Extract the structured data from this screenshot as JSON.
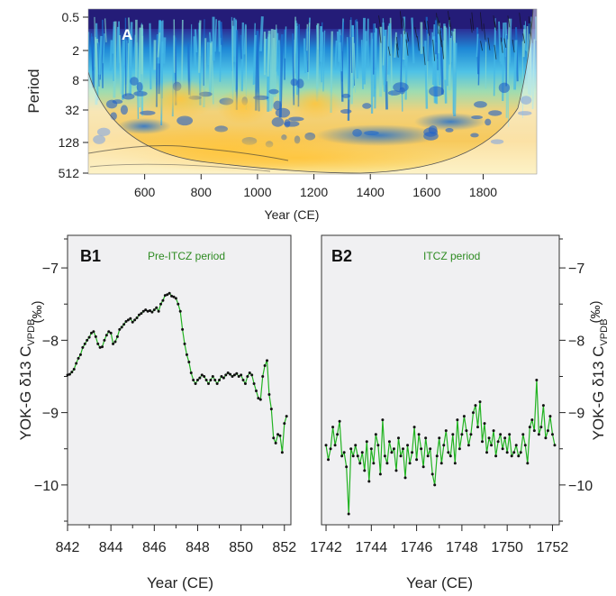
{
  "panel_a": {
    "label": "A",
    "ylabel": "Period",
    "xlabel": "Year (CE)",
    "yticks": [
      "0.5",
      "2",
      "8",
      "32",
      "128",
      "512"
    ],
    "xticks": [
      "600",
      "800",
      "1000",
      "1200",
      "1400",
      "1600",
      "1800"
    ],
    "colors": {
      "low": "#25207a",
      "mid": "#1e88d6",
      "mid2": "#4fc2e6",
      "high": "#f7cf60",
      "peak": "#ffe38a"
    }
  },
  "shared": {
    "ylabel_main": "YOK-G δ13 C",
    "ylabel_sub": "VPDB",
    "ylabel_unit": "(‰)",
    "line_color": "#22b322",
    "label_color": "#2e8b22",
    "yticks": [
      "−7",
      "−8",
      "−9",
      "−10"
    ]
  },
  "chart_data": [
    {
      "type": "line",
      "panel": "B1",
      "title": "Pre-ITCZ period",
      "xlabel": "Year (CE)",
      "ylabel": "YOK-G δ13 C VPDB (‰)",
      "xlim": [
        842,
        852.3
      ],
      "ylim": [
        -10.55,
        -6.55
      ],
      "xticks": [
        842,
        844,
        846,
        848,
        850,
        852
      ],
      "yticks": [
        -7,
        -8,
        -9,
        -10
      ],
      "x": [
        842.0,
        842.1,
        842.2,
        842.3,
        842.4,
        842.5,
        842.6,
        842.7,
        842.8,
        842.9,
        843.0,
        843.1,
        843.2,
        843.3,
        843.4,
        843.5,
        843.6,
        843.7,
        843.8,
        843.9,
        844.0,
        844.1,
        844.2,
        844.3,
        844.4,
        844.5,
        844.6,
        844.7,
        844.8,
        844.9,
        845.0,
        845.1,
        845.2,
        845.3,
        845.4,
        845.5,
        845.6,
        845.7,
        845.8,
        845.9,
        846.0,
        846.1,
        846.2,
        846.3,
        846.4,
        846.5,
        846.6,
        846.7,
        846.8,
        846.9,
        847.0,
        847.1,
        847.2,
        847.3,
        847.4,
        847.5,
        847.6,
        847.7,
        847.8,
        847.9,
        848.0,
        848.1,
        848.2,
        848.3,
        848.4,
        848.5,
        848.6,
        848.7,
        848.8,
        848.9,
        849.0,
        849.1,
        849.2,
        849.3,
        849.4,
        849.5,
        849.6,
        849.7,
        849.8,
        849.9,
        850.0,
        850.1,
        850.2,
        850.3,
        850.4,
        850.5,
        850.6,
        850.7,
        850.8,
        850.9,
        851.0,
        851.1,
        851.2,
        851.3,
        851.4,
        851.5,
        851.6,
        851.7,
        851.8,
        851.9,
        852.0,
        852.1
      ],
      "y": [
        -8.48,
        -8.47,
        -8.44,
        -8.4,
        -8.32,
        -8.25,
        -8.2,
        -8.1,
        -8.05,
        -8.0,
        -7.96,
        -7.9,
        -7.88,
        -7.95,
        -8.05,
        -8.1,
        -8.09,
        -8.0,
        -7.93,
        -7.88,
        -7.9,
        -8.05,
        -8.02,
        -7.95,
        -7.85,
        -7.82,
        -7.78,
        -7.74,
        -7.72,
        -7.7,
        -7.75,
        -7.72,
        -7.69,
        -7.65,
        -7.63,
        -7.6,
        -7.58,
        -7.6,
        -7.59,
        -7.61,
        -7.58,
        -7.55,
        -7.6,
        -7.5,
        -7.45,
        -7.38,
        -7.37,
        -7.35,
        -7.39,
        -7.4,
        -7.42,
        -7.5,
        -7.6,
        -7.85,
        -8.05,
        -8.2,
        -8.3,
        -8.45,
        -8.55,
        -8.6,
        -8.55,
        -8.52,
        -8.48,
        -8.5,
        -8.55,
        -8.6,
        -8.55,
        -8.5,
        -8.55,
        -8.6,
        -8.55,
        -8.5,
        -8.52,
        -8.48,
        -8.45,
        -8.47,
        -8.5,
        -8.48,
        -8.46,
        -8.5,
        -8.48,
        -8.55,
        -8.6,
        -8.5,
        -8.45,
        -8.48,
        -8.6,
        -8.7,
        -8.8,
        -8.82,
        -8.5,
        -8.35,
        -8.28,
        -8.75,
        -8.95,
        -9.35,
        -9.42,
        -9.3,
        -9.32,
        -9.55,
        -9.15,
        -9.05
      ]
    },
    {
      "type": "line",
      "panel": "B2",
      "title": "ITCZ period",
      "xlabel": "Year (CE)",
      "ylabel": "YOK-G δ13 C VPDB (‰)",
      "xlim": [
        1741.8,
        1752.3
      ],
      "ylim": [
        -10.55,
        -6.55
      ],
      "xticks": [
        1742,
        1744,
        1746,
        1748,
        1750,
        1752
      ],
      "yticks": [
        -7,
        -8,
        -9,
        -10
      ],
      "x": [
        1742.0,
        1742.1,
        1742.2,
        1742.3,
        1742.4,
        1742.5,
        1742.6,
        1742.7,
        1742.8,
        1742.9,
        1743.0,
        1743.1,
        1743.2,
        1743.3,
        1743.4,
        1743.5,
        1743.6,
        1743.7,
        1743.8,
        1743.9,
        1744.0,
        1744.1,
        1744.2,
        1744.3,
        1744.4,
        1744.5,
        1744.6,
        1744.7,
        1744.8,
        1744.9,
        1745.0,
        1745.1,
        1745.2,
        1745.3,
        1745.4,
        1745.5,
        1745.6,
        1745.7,
        1745.8,
        1745.9,
        1746.0,
        1746.1,
        1746.2,
        1746.3,
        1746.4,
        1746.5,
        1746.6,
        1746.7,
        1746.8,
        1746.9,
        1747.0,
        1747.1,
        1747.2,
        1747.3,
        1747.4,
        1747.5,
        1747.6,
        1747.7,
        1747.8,
        1747.9,
        1748.0,
        1748.1,
        1748.2,
        1748.3,
        1748.4,
        1748.5,
        1748.6,
        1748.7,
        1748.8,
        1748.9,
        1749.0,
        1749.1,
        1749.2,
        1749.3,
        1749.4,
        1749.5,
        1749.6,
        1749.7,
        1749.8,
        1749.9,
        1750.0,
        1750.1,
        1750.2,
        1750.3,
        1750.4,
        1750.5,
        1750.6,
        1750.7,
        1750.8,
        1750.9,
        1751.0,
        1751.1,
        1751.2,
        1751.3,
        1751.4,
        1751.5,
        1751.6,
        1751.7,
        1751.8,
        1751.9,
        1752.0,
        1752.1
      ],
      "y": [
        -9.45,
        -9.65,
        -9.5,
        -9.2,
        -9.45,
        -9.3,
        -9.12,
        -9.6,
        -9.55,
        -9.75,
        -10.4,
        -9.5,
        -9.6,
        -9.45,
        -9.6,
        -9.7,
        -9.55,
        -9.8,
        -9.4,
        -9.95,
        -9.5,
        -9.7,
        -9.3,
        -9.45,
        -9.85,
        -9.1,
        -9.6,
        -9.7,
        -9.4,
        -9.55,
        -9.5,
        -9.8,
        -9.35,
        -9.6,
        -9.5,
        -9.9,
        -9.45,
        -9.7,
        -9.55,
        -9.2,
        -9.65,
        -9.3,
        -9.5,
        -9.75,
        -9.35,
        -9.6,
        -9.5,
        -9.85,
        -10.0,
        -9.6,
        -9.35,
        -9.7,
        -9.45,
        -9.25,
        -9.55,
        -9.6,
        -9.3,
        -9.7,
        -9.1,
        -9.5,
        -9.3,
        -9.05,
        -9.25,
        -9.45,
        -9.3,
        -9.0,
        -8.9,
        -9.2,
        -8.85,
        -9.4,
        -9.15,
        -9.55,
        -9.35,
        -9.45,
        -9.25,
        -9.6,
        -9.4,
        -9.3,
        -9.5,
        -9.35,
        -9.55,
        -9.3,
        -9.6,
        -9.55,
        -9.45,
        -9.6,
        -9.55,
        -9.3,
        -9.45,
        -9.7,
        -9.2,
        -9.1,
        -9.25,
        -8.55,
        -9.3,
        -9.2,
        -8.9,
        -9.35,
        -9.25,
        -9.05,
        -9.3,
        -9.45
      ]
    }
  ]
}
